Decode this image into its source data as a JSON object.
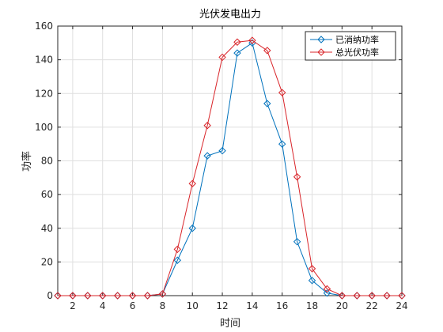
{
  "chart_data": {
    "type": "line",
    "title": "光伏发电出力",
    "xlabel": "时间",
    "ylabel": "功率",
    "xlim": [
      1,
      24
    ],
    "ylim": [
      0,
      160
    ],
    "xticks": [
      2,
      4,
      6,
      8,
      10,
      12,
      14,
      16,
      18,
      20,
      22,
      24
    ],
    "yticks": [
      0,
      20,
      40,
      60,
      80,
      100,
      120,
      140,
      160
    ],
    "grid": true,
    "legend_position": "top-right",
    "x": [
      1,
      2,
      3,
      4,
      5,
      6,
      7,
      8,
      9,
      10,
      11,
      12,
      13,
      14,
      15,
      16,
      17,
      18,
      19,
      20,
      21,
      22,
      23,
      24
    ],
    "series": [
      {
        "name": "已消纳功率",
        "color": "#0072BD",
        "marker": "diamond",
        "values": [
          0,
          0,
          0,
          0,
          0,
          0,
          0,
          1,
          21,
          40,
          83,
          86,
          144,
          150,
          114,
          90,
          32,
          9,
          1.5,
          0,
          0,
          0,
          0,
          0
        ]
      },
      {
        "name": "总光伏功率",
        "color": "#D95319",
        "line_color": "#D9252A",
        "marker": "diamond",
        "values": [
          0,
          0,
          0,
          0,
          0,
          0,
          0,
          1,
          27.5,
          66.5,
          101,
          141.5,
          150.5,
          151.5,
          145.5,
          120.5,
          70.5,
          16,
          4,
          0,
          0,
          0,
          0,
          0
        ]
      }
    ]
  }
}
